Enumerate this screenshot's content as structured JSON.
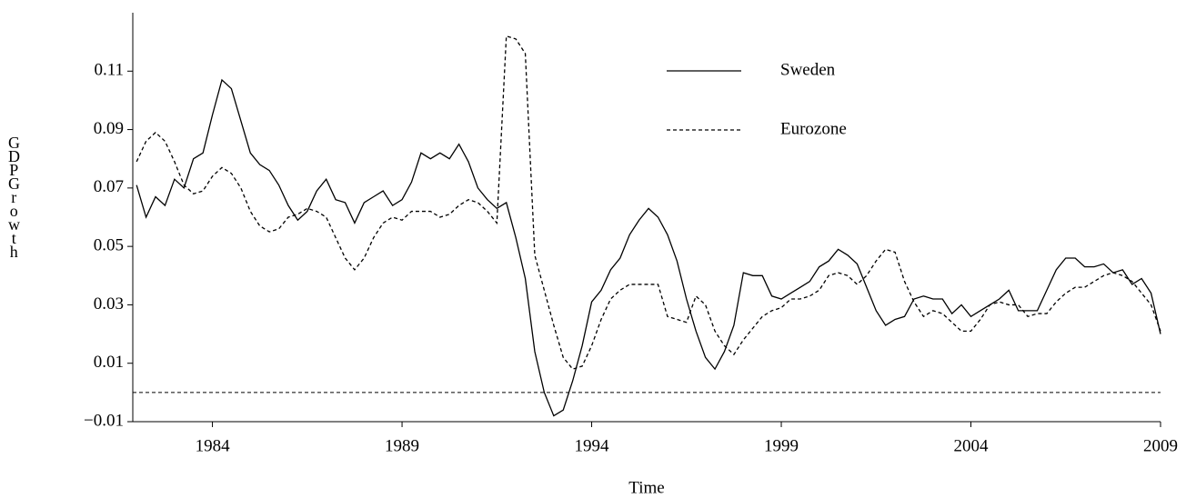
{
  "chart_data": {
    "type": "line",
    "xlabel": "Time",
    "ylabel": "GDP Growth",
    "x": [
      1982,
      1982.25,
      1982.5,
      1982.75,
      1983,
      1983.25,
      1983.5,
      1983.75,
      1984,
      1984.25,
      1984.5,
      1984.75,
      1985,
      1985.25,
      1985.5,
      1985.75,
      1986,
      1986.25,
      1986.5,
      1986.75,
      1987,
      1987.25,
      1987.5,
      1987.75,
      1988,
      1988.25,
      1988.5,
      1988.75,
      1989,
      1989.25,
      1989.5,
      1989.75,
      1990,
      1990.25,
      1990.5,
      1990.75,
      1991,
      1991.25,
      1991.5,
      1991.75,
      1992,
      1992.25,
      1992.5,
      1992.75,
      1993,
      1993.25,
      1993.5,
      1993.75,
      1994,
      1994.25,
      1994.5,
      1994.75,
      1995,
      1995.25,
      1995.5,
      1995.75,
      1996,
      1996.25,
      1996.5,
      1996.75,
      1997,
      1997.25,
      1997.5,
      1997.75,
      1998,
      1998.25,
      1998.5,
      1998.75,
      1999,
      1999.25,
      1999.5,
      1999.75,
      2000,
      2000.25,
      2000.5,
      2000.75,
      2001,
      2001.25,
      2001.5,
      2001.75,
      2002,
      2002.25,
      2002.5,
      2002.75,
      2003,
      2003.25,
      2003.5,
      2003.75,
      2004,
      2004.25,
      2004.5,
      2004.75,
      2005,
      2005.25,
      2005.5,
      2005.75,
      2006,
      2006.25,
      2006.5,
      2006.75,
      2007,
      2007.25,
      2007.5,
      2007.75,
      2008,
      2008.25,
      2008.5,
      2008.75,
      2009
    ],
    "series": [
      {
        "name": "Sweden",
        "color": "#000000",
        "line_style": "solid",
        "values": [
          0.071,
          0.06,
          0.067,
          0.064,
          0.073,
          0.07,
          0.08,
          0.082,
          0.095,
          0.107,
          0.104,
          0.093,
          0.082,
          0.078,
          0.076,
          0.071,
          0.064,
          0.059,
          0.062,
          0.069,
          0.073,
          0.066,
          0.065,
          0.058,
          0.065,
          0.067,
          0.069,
          0.064,
          0.066,
          0.072,
          0.082,
          0.08,
          0.082,
          0.08,
          0.085,
          0.079,
          0.07,
          0.066,
          0.063,
          0.065,
          0.053,
          0.039,
          0.014,
          0.0,
          -0.008,
          -0.006,
          0.004,
          0.016,
          0.031,
          0.035,
          0.042,
          0.046,
          0.054,
          0.059,
          0.063,
          0.06,
          0.054,
          0.045,
          0.032,
          0.021,
          0.012,
          0.008,
          0.014,
          0.023,
          0.041,
          0.04,
          0.04,
          0.033,
          0.032,
          0.034,
          0.036,
          0.038,
          0.043,
          0.045,
          0.049,
          0.047,
          0.044,
          0.036,
          0.028,
          0.023,
          0.025,
          0.026,
          0.032,
          0.033,
          0.032,
          0.032,
          0.027,
          0.03,
          0.026,
          0.028,
          0.03,
          0.032,
          0.035,
          0.028,
          0.028,
          0.028,
          0.035,
          0.042,
          0.046,
          0.046,
          0.043,
          0.043,
          0.044,
          0.041,
          0.042,
          0.037,
          0.039,
          0.034,
          0.02
        ]
      },
      {
        "name": "Eurozone",
        "color": "#000000",
        "line_style": "dashed",
        "values": [
          0.079,
          0.086,
          0.089,
          0.086,
          0.079,
          0.071,
          0.068,
          0.069,
          0.074,
          0.077,
          0.075,
          0.07,
          0.062,
          0.057,
          0.055,
          0.056,
          0.06,
          0.061,
          0.063,
          0.062,
          0.06,
          0.053,
          0.046,
          0.042,
          0.046,
          0.053,
          0.058,
          0.06,
          0.059,
          0.062,
          0.062,
          0.062,
          0.06,
          0.061,
          0.064,
          0.066,
          0.065,
          0.062,
          0.058,
          0.122,
          0.121,
          0.116,
          0.047,
          0.035,
          0.023,
          0.012,
          0.008,
          0.009,
          0.016,
          0.025,
          0.032,
          0.035,
          0.037,
          0.037,
          0.037,
          0.037,
          0.026,
          0.025,
          0.024,
          0.033,
          0.03,
          0.021,
          0.016,
          0.013,
          0.018,
          0.022,
          0.026,
          0.028,
          0.029,
          0.032,
          0.032,
          0.033,
          0.035,
          0.04,
          0.041,
          0.04,
          0.037,
          0.04,
          0.045,
          0.049,
          0.048,
          0.038,
          0.031,
          0.026,
          0.028,
          0.027,
          0.024,
          0.021,
          0.021,
          0.025,
          0.03,
          0.031,
          0.03,
          0.03,
          0.026,
          0.027,
          0.027,
          0.031,
          0.034,
          0.036,
          0.036,
          0.038,
          0.04,
          0.041,
          0.04,
          0.038,
          0.034,
          0.03,
          0.021
        ]
      }
    ],
    "xlim": [
      1981.9,
      2009
    ],
    "xticks": [
      1984,
      1989,
      1994,
      1999,
      2004,
      2009
    ],
    "ylim": [
      -0.01,
      0.13
    ],
    "yticks": [
      {
        "value": -0.01,
        "label": "−0.01"
      },
      0.01,
      0.03,
      0.05,
      0.07,
      0.09,
      0.11
    ],
    "hline": 0,
    "legend": "top-center"
  }
}
